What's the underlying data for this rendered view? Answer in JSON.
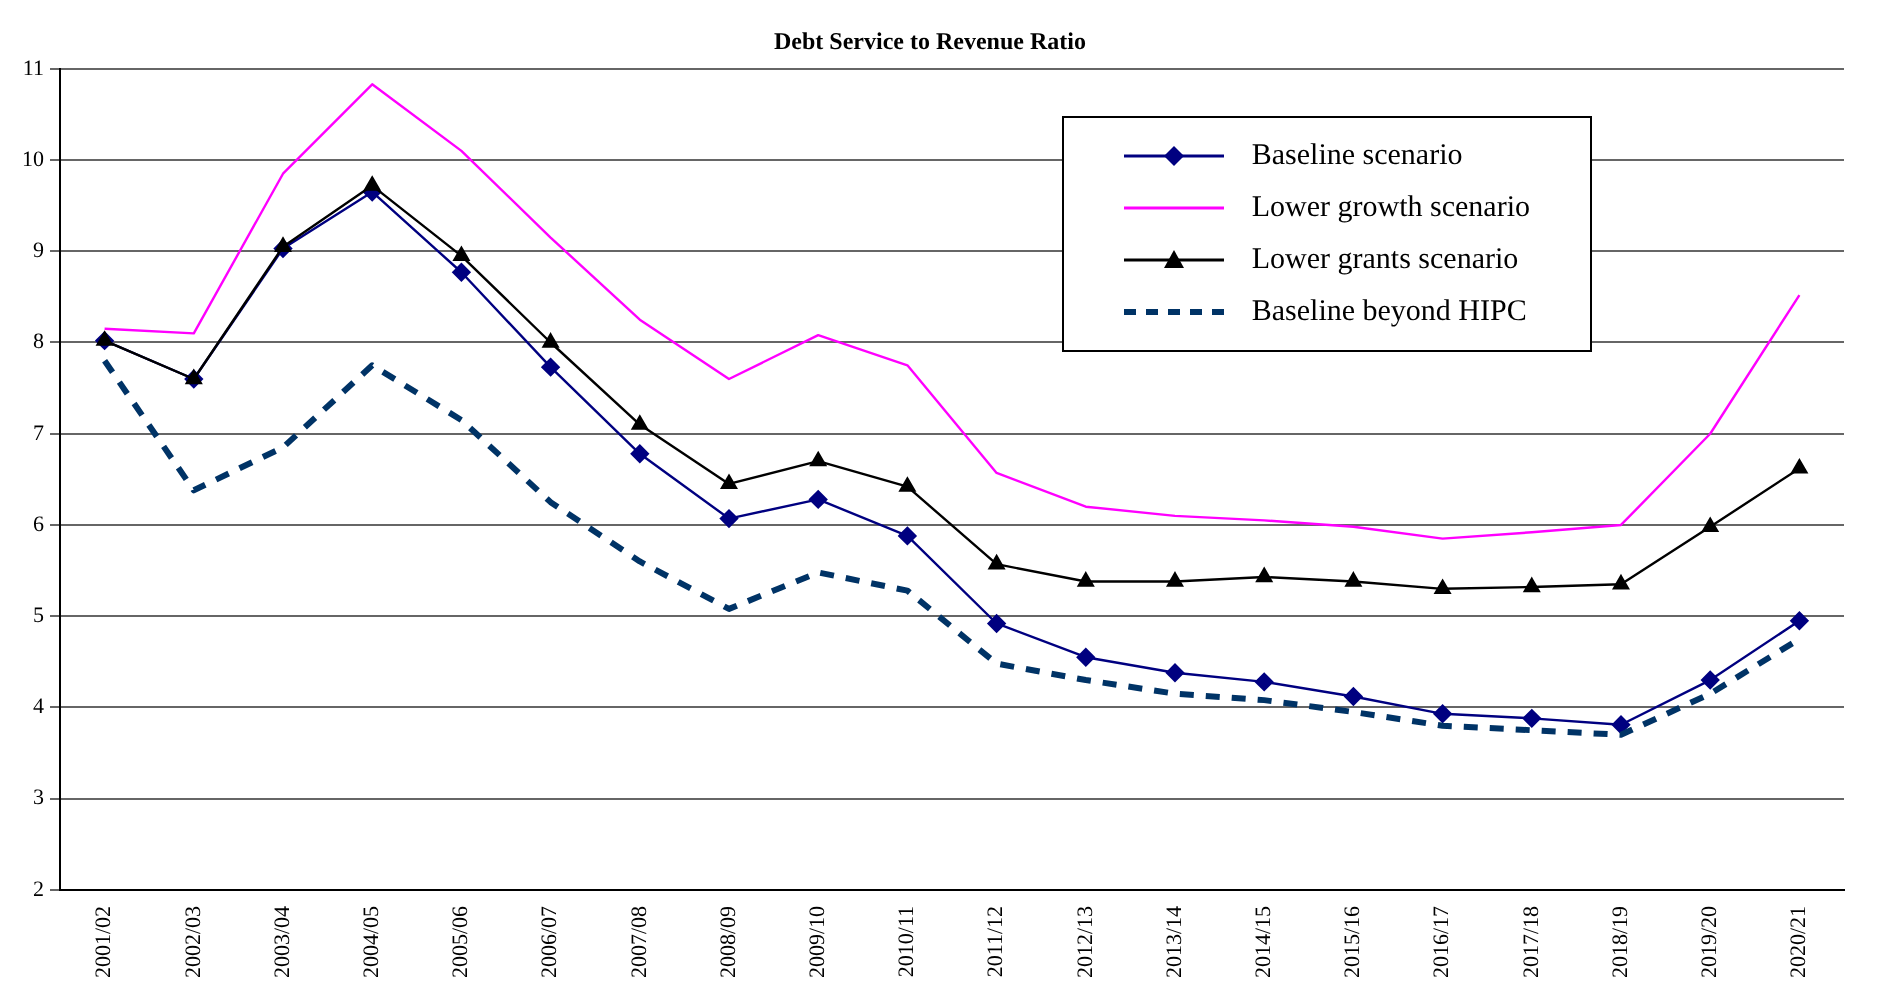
{
  "chart_data": {
    "type": "line",
    "title": "Debt Service to Revenue Ratio",
    "categories": [
      "2001/02",
      "2002/03",
      "2003/04",
      "2004/05",
      "2005/06",
      "2006/07",
      "2007/08",
      "2008/09",
      "2009/10",
      "2010/11",
      "2011/12",
      "2012/13",
      "2013/14",
      "2014/15",
      "2015/16",
      "2016/17",
      "2017/18",
      "2018/19",
      "2019/20",
      "2020/21"
    ],
    "series": [
      {
        "name": "Baseline scenario",
        "color": "#000080",
        "marker": "diamond",
        "line_style": "solid",
        "values": [
          8.02,
          7.6,
          9.03,
          9.65,
          8.77,
          7.73,
          6.78,
          6.07,
          6.28,
          5.88,
          4.92,
          4.55,
          4.38,
          4.28,
          4.12,
          3.93,
          3.88,
          3.81,
          4.3,
          4.95
        ]
      },
      {
        "name": "Lower growth scenario",
        "color": "#ff00ff",
        "marker": "none",
        "line_style": "solid",
        "values": [
          8.15,
          8.1,
          9.85,
          10.83,
          10.1,
          9.15,
          8.25,
          7.6,
          8.08,
          7.75,
          6.57,
          6.2,
          6.1,
          6.05,
          5.98,
          5.85,
          5.92,
          6.0,
          7.0,
          8.52
        ]
      },
      {
        "name": "Lower grants scenario",
        "color": "#000000",
        "marker": "triangle",
        "line_style": "solid",
        "values": [
          8.02,
          7.6,
          9.05,
          9.72,
          8.95,
          8.0,
          7.1,
          6.45,
          6.7,
          6.42,
          5.57,
          5.38,
          5.38,
          5.43,
          5.38,
          5.3,
          5.32,
          5.35,
          5.98,
          6.62
        ]
      },
      {
        "name": "Baseline beyond HIPC",
        "color": "#003366",
        "marker": "none",
        "line_style": "dashed",
        "values": [
          7.8,
          6.38,
          6.85,
          7.75,
          7.15,
          6.25,
          5.6,
          5.08,
          5.48,
          5.28,
          4.48,
          4.3,
          4.15,
          4.08,
          3.95,
          3.8,
          3.75,
          3.7,
          4.15,
          4.75
        ]
      }
    ],
    "ylim": [
      2,
      11
    ],
    "yticks": [
      2,
      3,
      4,
      5,
      6,
      7,
      8,
      9,
      10,
      11
    ],
    "grid": "y",
    "legend": "top right"
  }
}
